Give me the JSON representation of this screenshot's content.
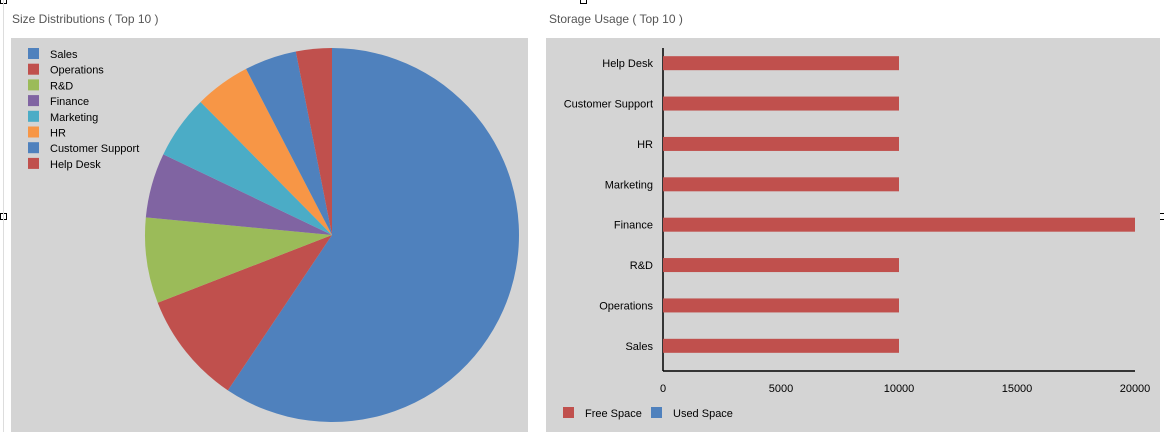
{
  "chart_data": [
    {
      "type": "pie",
      "title": "Size Distributions ( Top 10 )",
      "categories": [
        "Sales",
        "Operations",
        "R&D",
        "Finance",
        "Marketing",
        "HR",
        "Customer Support",
        "Help Desk"
      ],
      "values": [
        59.4,
        9.7,
        7.4,
        5.6,
        5.5,
        4.8,
        4.5,
        3.1
      ],
      "colors": [
        "#4f81bd",
        "#c0504d",
        "#9bbb59",
        "#8064a2",
        "#4bacc6",
        "#f79646",
        "#4f81bd",
        "#c0504d"
      ],
      "legend": "top-left"
    },
    {
      "type": "bar",
      "orientation": "horizontal",
      "title": "Storage Usage ( Top 10 )",
      "categories": [
        "Help Desk",
        "Customer Support",
        "HR",
        "Marketing",
        "Finance",
        "R&D",
        "Operations",
        "Sales"
      ],
      "series": [
        {
          "name": "Free Space",
          "color": "#c0504d",
          "values": [
            10000,
            10000,
            10000,
            10000,
            20000,
            10000,
            10000,
            10000
          ]
        },
        {
          "name": "Used Space",
          "color": "#4f81bd",
          "values": [
            0,
            0,
            0,
            0,
            0,
            0,
            0,
            0
          ]
        }
      ],
      "xlim": [
        0,
        20000
      ],
      "xticks": [
        "0",
        "5000",
        "10000",
        "15000",
        "20000"
      ],
      "legend": "bottom-left",
      "grid": false
    }
  ]
}
